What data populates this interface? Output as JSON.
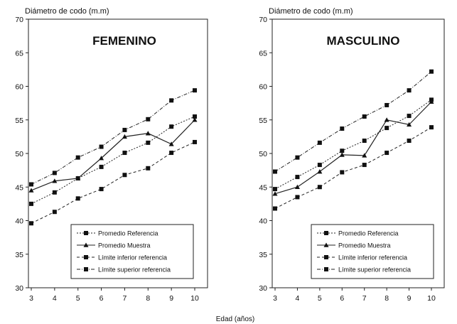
{
  "chart_data": [
    {
      "type": "line",
      "title": "FEMENINO",
      "ylabel": "Diámetro de codo (m.m)",
      "xlabel": "Edad (años)",
      "x": [
        3,
        4,
        5,
        6,
        7,
        8,
        9,
        10
      ],
      "ylim": [
        30,
        70
      ],
      "yticks": [
        30,
        35,
        40,
        45,
        50,
        55,
        60,
        65,
        70
      ],
      "grid": false,
      "legend_position": "bottom-right",
      "series": [
        {
          "name": "Promedio Referencia",
          "values": [
            42.5,
            44.2,
            46.3,
            48.0,
            50.1,
            51.6,
            54.0,
            55.5
          ]
        },
        {
          "name": "Promedio Muestra",
          "values": [
            44.5,
            45.9,
            46.3,
            49.3,
            52.5,
            53.0,
            51.4,
            55.0
          ]
        },
        {
          "name": "Límite inferior referencia",
          "values": [
            39.6,
            41.3,
            43.3,
            44.7,
            46.8,
            47.8,
            50.1,
            51.7
          ]
        },
        {
          "name": "Límite superior referencia",
          "values": [
            45.4,
            47.1,
            49.4,
            51.0,
            53.5,
            55.1,
            57.9,
            59.4
          ]
        }
      ]
    },
    {
      "type": "line",
      "title": "MASCULINO",
      "ylabel": "Diámetro de codo (m.m)",
      "xlabel": "Edad (años)",
      "x": [
        3,
        4,
        5,
        6,
        7,
        8,
        9,
        10
      ],
      "ylim": [
        30,
        70
      ],
      "yticks": [
        30,
        35,
        40,
        45,
        50,
        55,
        60,
        65,
        70
      ],
      "grid": false,
      "legend_position": "bottom-right",
      "series": [
        {
          "name": "Promedio Referencia",
          "values": [
            44.7,
            46.5,
            48.3,
            50.4,
            51.9,
            53.8,
            55.6,
            58.0
          ]
        },
        {
          "name": "Promedio Muestra",
          "values": [
            44.0,
            45.0,
            47.3,
            49.8,
            49.7,
            55.0,
            54.3,
            57.7
          ]
        },
        {
          "name": "Límite inferior referencia",
          "values": [
            41.8,
            43.5,
            45.0,
            47.2,
            48.3,
            50.1,
            51.9,
            53.9
          ]
        },
        {
          "name": "Límite superior referencia",
          "values": [
            47.3,
            49.4,
            51.6,
            53.7,
            55.5,
            57.2,
            59.4,
            62.2
          ]
        }
      ]
    }
  ],
  "figure": {
    "xlabel": "Edad (años)"
  }
}
